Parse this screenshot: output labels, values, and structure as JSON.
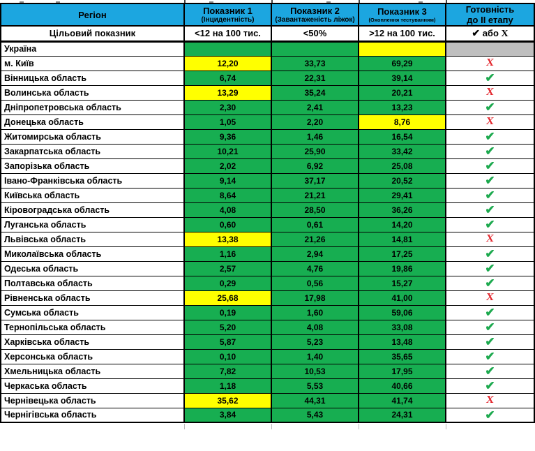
{
  "palette": {
    "header_blue": "#1CA6E0",
    "green": "#17AE51",
    "yellow": "#FFFF00",
    "gray": "#BFBFBF",
    "check_green": "#1CA94E",
    "cross_red": "#E2242B"
  },
  "marks": {
    "check": "✔",
    "cross": "Х"
  },
  "table": {
    "header": {
      "region": "Регіон",
      "ind1": {
        "title": "Показник 1",
        "subtitle": "(Інцидентність)"
      },
      "ind2": {
        "title": "Показник 2",
        "subtitle": "(Завантаженість ліжок)"
      },
      "ind3": {
        "title": "Показник 3",
        "subtitle": "(Охоплення тестуванням)"
      },
      "readiness": {
        "line1": "Готовність",
        "line2": "до II етапу"
      }
    },
    "target": {
      "label": "Цільовий показник",
      "ind1": "<12 на 100 тис.",
      "ind2": "<50%",
      "ind3": ">12 на 100 тис.",
      "or_word": "або"
    },
    "rows": [
      {
        "name": "Україна",
        "values": [
          "",
          "",
          ""
        ],
        "colors": [
          "green",
          "green",
          "yellow"
        ],
        "ready": "none"
      },
      {
        "name": "м. Київ",
        "values": [
          "12,20",
          "33,73",
          "69,29"
        ],
        "colors": [
          "yellow",
          "green",
          "green"
        ],
        "ready": "fail"
      },
      {
        "name": "Вінницька область",
        "values": [
          "6,74",
          "22,31",
          "39,14"
        ],
        "colors": [
          "green",
          "green",
          "green"
        ],
        "ready": "pass"
      },
      {
        "name": "Волинська область",
        "values": [
          "13,29",
          "35,24",
          "20,21"
        ],
        "colors": [
          "yellow",
          "green",
          "green"
        ],
        "ready": "fail"
      },
      {
        "name": "Дніпропетровська область",
        "values": [
          "2,30",
          "2,41",
          "13,23"
        ],
        "colors": [
          "green",
          "green",
          "green"
        ],
        "ready": "pass"
      },
      {
        "name": "Донецька область",
        "values": [
          "1,05",
          "2,20",
          "8,76"
        ],
        "colors": [
          "green",
          "green",
          "yellow"
        ],
        "ready": "fail"
      },
      {
        "name": "Житомирська область",
        "values": [
          "9,36",
          "1,46",
          "16,54"
        ],
        "colors": [
          "green",
          "green",
          "green"
        ],
        "ready": "pass"
      },
      {
        "name": "Закарпатська область",
        "values": [
          "10,21",
          "25,90",
          "33,42"
        ],
        "colors": [
          "green",
          "green",
          "green"
        ],
        "ready": "pass"
      },
      {
        "name": "Запорізька область",
        "values": [
          "2,02",
          "6,92",
          "25,08"
        ],
        "colors": [
          "green",
          "green",
          "green"
        ],
        "ready": "pass"
      },
      {
        "name": "Івано-Франківська область",
        "values": [
          "9,14",
          "37,17",
          "20,52"
        ],
        "colors": [
          "green",
          "green",
          "green"
        ],
        "ready": "pass"
      },
      {
        "name": "Київська область",
        "values": [
          "8,64",
          "21,21",
          "29,41"
        ],
        "colors": [
          "green",
          "green",
          "green"
        ],
        "ready": "pass"
      },
      {
        "name": "Кіровоградська область",
        "values": [
          "4,08",
          "28,50",
          "36,26"
        ],
        "colors": [
          "green",
          "green",
          "green"
        ],
        "ready": "pass"
      },
      {
        "name": "Луганська область",
        "values": [
          "0,60",
          "0,61",
          "14,20"
        ],
        "colors": [
          "green",
          "green",
          "green"
        ],
        "ready": "pass"
      },
      {
        "name": "Львівська область",
        "values": [
          "13,38",
          "21,26",
          "14,81"
        ],
        "colors": [
          "yellow",
          "green",
          "green"
        ],
        "ready": "fail"
      },
      {
        "name": "Миколаївська область",
        "values": [
          "1,16",
          "2,94",
          "17,25"
        ],
        "colors": [
          "green",
          "green",
          "green"
        ],
        "ready": "pass"
      },
      {
        "name": "Одеська область",
        "values": [
          "2,57",
          "4,76",
          "19,86"
        ],
        "colors": [
          "green",
          "green",
          "green"
        ],
        "ready": "pass"
      },
      {
        "name": "Полтавська область",
        "values": [
          "0,29",
          "0,56",
          "15,27"
        ],
        "colors": [
          "green",
          "green",
          "green"
        ],
        "ready": "pass"
      },
      {
        "name": "Рівненська область",
        "values": [
          "25,68",
          "17,98",
          "41,00"
        ],
        "colors": [
          "yellow",
          "green",
          "green"
        ],
        "ready": "fail"
      },
      {
        "name": "Сумська область",
        "values": [
          "0,19",
          "1,60",
          "59,06"
        ],
        "colors": [
          "green",
          "green",
          "green"
        ],
        "ready": "pass"
      },
      {
        "name": "Тернопільська область",
        "values": [
          "5,20",
          "4,08",
          "33,08"
        ],
        "colors": [
          "green",
          "green",
          "green"
        ],
        "ready": "pass"
      },
      {
        "name": "Харківська область",
        "values": [
          "5,87",
          "5,23",
          "13,48"
        ],
        "colors": [
          "green",
          "green",
          "green"
        ],
        "ready": "pass"
      },
      {
        "name": "Херсонська область",
        "values": [
          "0,10",
          "1,40",
          "35,65"
        ],
        "colors": [
          "green",
          "green",
          "green"
        ],
        "ready": "pass"
      },
      {
        "name": "Хмельницька область",
        "values": [
          "7,82",
          "10,53",
          "17,95"
        ],
        "colors": [
          "green",
          "green",
          "green"
        ],
        "ready": "pass"
      },
      {
        "name": "Черкаська область",
        "values": [
          "1,18",
          "5,53",
          "40,66"
        ],
        "colors": [
          "green",
          "green",
          "green"
        ],
        "ready": "pass"
      },
      {
        "name": "Чернівецька область",
        "values": [
          "35,62",
          "44,31",
          "41,74"
        ],
        "colors": [
          "yellow",
          "green",
          "green"
        ],
        "ready": "fail"
      },
      {
        "name": "Чернігівська область",
        "values": [
          "3,84",
          "5,43",
          "24,31"
        ],
        "colors": [
          "green",
          "green",
          "green"
        ],
        "ready": "pass"
      }
    ]
  }
}
